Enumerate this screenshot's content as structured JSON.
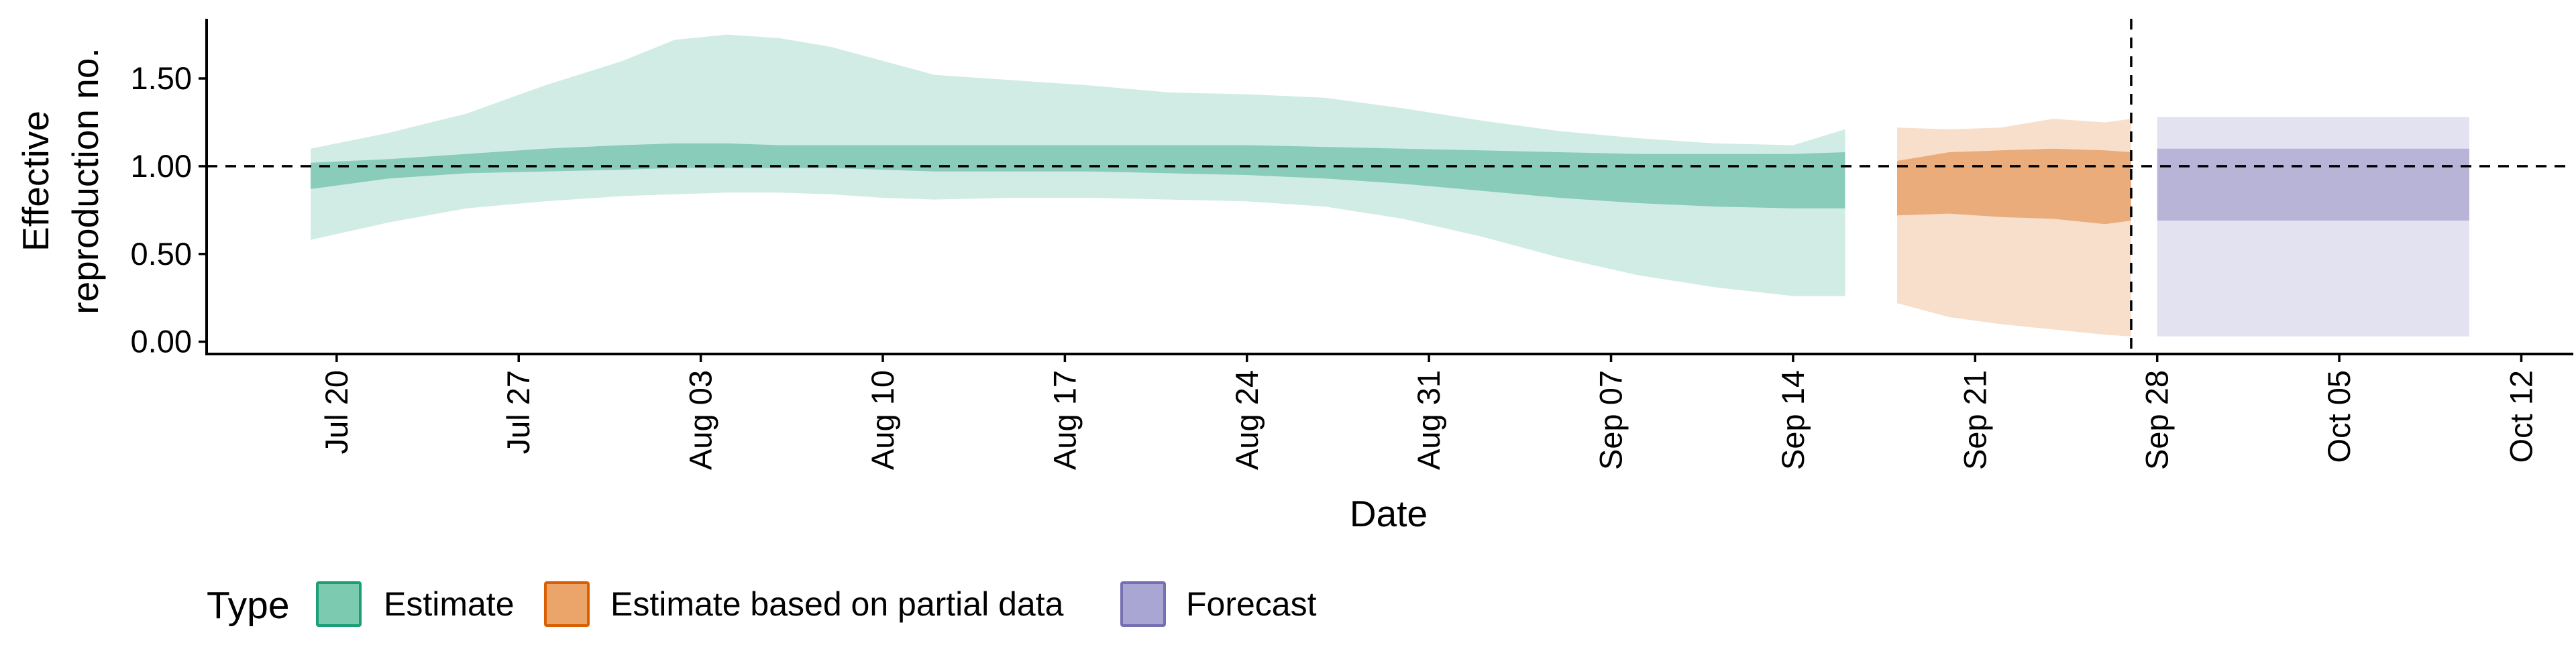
{
  "chart_data": {
    "type": "area",
    "title": "",
    "xlabel": "Date",
    "ylabel_lines": [
      "Effective",
      "reproduction no."
    ],
    "x_ticks": [
      "Jul 20",
      "Jul 27",
      "Aug 03",
      "Aug 10",
      "Aug 17",
      "Aug 24",
      "Aug 31",
      "Sep 07",
      "Sep 14",
      "Sep 21",
      "Sep 28",
      "Oct 05",
      "Oct 12"
    ],
    "y_ticks": [
      "0.00",
      "0.50",
      "1.00",
      "1.50"
    ],
    "ylim": [
      -0.07,
      1.84
    ],
    "xlim": [
      "2020-07-15",
      "2020-10-14"
    ],
    "reference_line_y": 1.0,
    "reference_line_x": "2020-09-27",
    "legend": {
      "title": "Type",
      "position": "bottom-left",
      "entries": [
        {
          "key": "estimate",
          "label": "Estimate",
          "fill": "#7ccab0",
          "stroke": "#1b9e77"
        },
        {
          "key": "partial",
          "label": "Estimate based on partial data",
          "fill": "#eba56a",
          "stroke": "#d95f02"
        },
        {
          "key": "forecast",
          "label": "Forecast",
          "fill": "#aaa6d3",
          "stroke": "#7570b3"
        }
      ]
    },
    "colors": {
      "estimate": "#1b9e77",
      "partial": "#d95f02",
      "forecast": "#7570b3"
    },
    "series": [
      {
        "type": "estimate",
        "x": [
          "2020-07-19",
          "2020-07-22",
          "2020-07-25",
          "2020-07-28",
          "2020-07-31",
          "2020-08-02",
          "2020-08-04",
          "2020-08-06",
          "2020-08-08",
          "2020-08-10",
          "2020-08-12",
          "2020-08-15",
          "2020-08-18",
          "2020-08-21",
          "2020-08-24",
          "2020-08-27",
          "2020-08-30",
          "2020-09-02",
          "2020-09-05",
          "2020-09-08",
          "2020-09-11",
          "2020-09-14",
          "2020-09-16"
        ],
        "upper90": [
          1.1,
          1.19,
          1.3,
          1.46,
          1.6,
          1.72,
          1.75,
          1.73,
          1.68,
          1.6,
          1.52,
          1.49,
          1.46,
          1.42,
          1.41,
          1.39,
          1.33,
          1.26,
          1.2,
          1.16,
          1.13,
          1.12,
          1.21
        ],
        "upper50": [
          1.02,
          1.04,
          1.07,
          1.1,
          1.12,
          1.13,
          1.13,
          1.12,
          1.12,
          1.12,
          1.12,
          1.12,
          1.12,
          1.12,
          1.12,
          1.11,
          1.1,
          1.09,
          1.08,
          1.07,
          1.07,
          1.07,
          1.08
        ],
        "lower50": [
          0.87,
          0.93,
          0.96,
          0.97,
          0.98,
          0.99,
          0.99,
          0.99,
          0.99,
          0.98,
          0.97,
          0.97,
          0.97,
          0.96,
          0.95,
          0.93,
          0.9,
          0.86,
          0.82,
          0.79,
          0.77,
          0.76,
          0.76
        ],
        "lower90": [
          0.58,
          0.68,
          0.76,
          0.8,
          0.83,
          0.84,
          0.85,
          0.85,
          0.84,
          0.82,
          0.81,
          0.82,
          0.82,
          0.81,
          0.8,
          0.77,
          0.7,
          0.6,
          0.48,
          0.38,
          0.31,
          0.26,
          0.26
        ]
      },
      {
        "type": "partial",
        "x": [
          "2020-09-18",
          "2020-09-20",
          "2020-09-22",
          "2020-09-24",
          "2020-09-26",
          "2020-09-27"
        ],
        "upper90": [
          1.22,
          1.21,
          1.22,
          1.27,
          1.25,
          1.27
        ],
        "upper50": [
          1.03,
          1.08,
          1.09,
          1.1,
          1.09,
          1.08
        ],
        "lower50": [
          0.72,
          0.73,
          0.71,
          0.7,
          0.67,
          0.69
        ],
        "lower90": [
          0.22,
          0.14,
          0.1,
          0.07,
          0.04,
          0.03
        ]
      },
      {
        "type": "forecast",
        "x": [
          "2020-09-28",
          "2020-10-10"
        ],
        "upper90": [
          1.28,
          1.28
        ],
        "upper50": [
          1.1,
          1.1
        ],
        "lower50": [
          0.69,
          0.69
        ],
        "lower90": [
          0.03,
          0.03
        ]
      }
    ]
  }
}
